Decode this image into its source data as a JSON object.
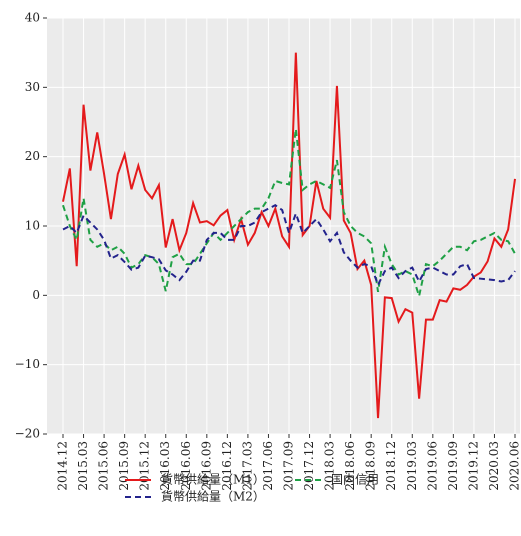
{
  "chart_data": {
    "type": "line",
    "categories": [
      "2014.12",
      null,
      null,
      "2015.03",
      null,
      null,
      "2015.06",
      null,
      null,
      "2015.09",
      null,
      null,
      "2015.12",
      null,
      null,
      "2016.03",
      null,
      null,
      "2016.06",
      null,
      null,
      "2016.09",
      null,
      null,
      "2016.12",
      null,
      null,
      "2017.03",
      null,
      null,
      "2017.06",
      null,
      null,
      "2017.09",
      null,
      null,
      "2017.12",
      null,
      null,
      "2018.03",
      null,
      null,
      "2018.06",
      null,
      null,
      "2018.09",
      null,
      null,
      "2018.12",
      null,
      null,
      "2019.03",
      null,
      null,
      "2019.06",
      null,
      null,
      "2019.09",
      null,
      null,
      "2019.12",
      null,
      null,
      "2020.03",
      null,
      null,
      "2020.06"
    ],
    "series": [
      {
        "name": "貨幣供給量（M1）",
        "color": "#e41a1c",
        "dashed": false,
        "values": [
          13.5,
          18.3,
          4.2,
          27.5,
          18,
          23.5,
          17.5,
          11,
          17.5,
          20.3,
          15.3,
          18.7,
          15.2,
          14,
          15.9,
          6.9,
          11,
          6.5,
          9,
          13.3,
          10.5,
          10.7,
          10.1,
          11.5,
          12.3,
          8,
          11,
          7.3,
          9,
          12,
          10,
          12.5,
          8.5,
          7,
          35,
          8.7,
          10,
          16.5,
          12.5,
          11.2,
          30.2,
          10.8,
          9,
          3.8,
          5,
          1.5,
          -17.7,
          -0.3,
          -0.4,
          -3.8,
          -2,
          -2.5,
          -14.9,
          -3.5,
          -3.5,
          -0.7,
          -0.9,
          1,
          0.8,
          1.5,
          2.7,
          3.3,
          4.9,
          8.2,
          7,
          9.5,
          16.8
        ]
      },
      {
        "name": "国内信用",
        "color": "#1fa045",
        "dashed": true,
        "values": [
          13,
          10,
          8,
          14,
          8,
          7,
          7.5,
          6.5,
          7,
          6,
          4,
          4.5,
          5.8,
          5.5,
          4.5,
          0.6,
          5.5,
          6,
          4.5,
          4.5,
          6,
          7.5,
          9,
          8,
          9,
          10,
          11,
          12,
          12.5,
          12.5,
          14,
          16.5,
          16.2,
          16,
          24,
          15.2,
          16,
          16.5,
          16,
          15.5,
          19.5,
          12,
          10,
          9,
          8.5,
          7.5,
          0.5,
          7,
          4.5,
          3,
          3.5,
          3,
          -0.1,
          4.5,
          4.2,
          5,
          6,
          7,
          7,
          6.5,
          7.8,
          8,
          8.5,
          9,
          8,
          7.8,
          6
        ]
      },
      {
        "name": "貨幣供給量（M2）",
        "color": "#23238c",
        "dashed": true,
        "values": [
          9.5,
          10,
          9,
          11.5,
          10.5,
          9.5,
          8,
          5.3,
          5.8,
          4.8,
          3.7,
          4,
          5.7,
          5.5,
          5.2,
          3.6,
          3,
          2.2,
          3.4,
          5,
          5,
          8,
          9,
          9,
          8,
          8,
          10,
          10,
          10.5,
          12,
          12.5,
          13,
          12.3,
          9,
          11.8,
          9,
          10,
          11,
          9.5,
          7.8,
          9,
          6.2,
          5,
          4,
          4.5,
          4.2,
          1.5,
          3.5,
          4,
          2.5,
          3.5,
          4,
          2,
          3.8,
          4,
          3.5,
          3,
          3,
          4.2,
          4.5,
          2.5,
          2.4,
          2.3,
          2.2,
          2,
          2.2,
          3.5
        ]
      }
    ],
    "ylim": [
      -20,
      40
    ],
    "yticks": [
      {
        "value": -20,
        "label": "−20"
      },
      {
        "value": -10,
        "label": "−10"
      },
      0,
      10,
      20,
      30,
      40
    ],
    "grid": true,
    "legend": "bottom"
  }
}
